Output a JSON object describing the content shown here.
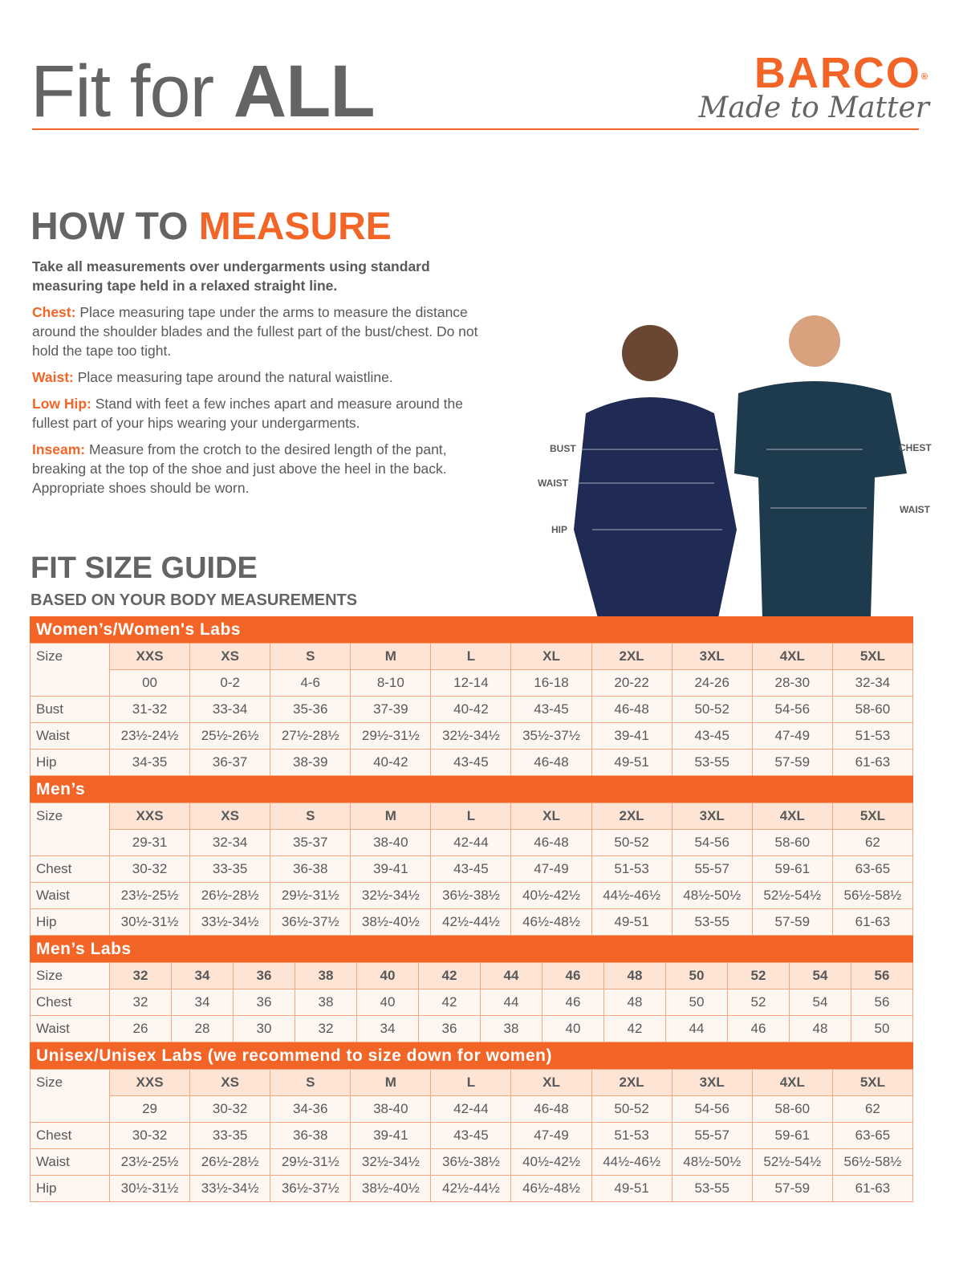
{
  "header": {
    "title_thin": "Fit for ",
    "title_bold": "ALL",
    "brand": "BARCO",
    "brand_mark": "®",
    "tagline": "Made to Matter"
  },
  "measure": {
    "title_a": "HOW TO ",
    "title_b": "MEASURE",
    "lead": "Take all measurements over undergarments using standard measuring tape held in a relaxed straight line.",
    "items": [
      {
        "term": "Chest:",
        "text": " Place measuring tape under the arms to measure the distance around the shoulder blades and the fullest part of the bust/chest. Do not hold the tape too tight."
      },
      {
        "term": "Waist:",
        "text": " Place measuring tape around the natural waistline."
      },
      {
        "term": "Low Hip:",
        "text": " Stand with feet a few inches apart and measure around the fullest part of your hips wearing your undergarments."
      },
      {
        "term": "Inseam:",
        "text": " Measure from the crotch to the desired length of the pant, breaking at the top of the shoe and just above the heel in the back. Appropriate shoes should be worn."
      }
    ]
  },
  "photo": {
    "labels": [
      "BUST",
      "WAIST",
      "HIP",
      "CHEST",
      "WAIST"
    ]
  },
  "guide": {
    "title": "FIT SIZE GUIDE",
    "subtitle": "BASED ON YOUR BODY MEASUREMENTS"
  },
  "tables": [
    {
      "title": "Women’s/Women's Labs",
      "sizes": [
        "XXS",
        "XS",
        "S",
        "M",
        "L",
        "XL",
        "2XL",
        "3XL",
        "4XL",
        "5XL"
      ],
      "rows": [
        {
          "label": "",
          "values": [
            "00",
            "0-2",
            "4-6",
            "8-10",
            "12-14",
            "16-18",
            "20-22",
            "24-26",
            "28-30",
            "32-34"
          ]
        },
        {
          "label": "Bust",
          "values": [
            "31-32",
            "33-34",
            "35-36",
            "37-39",
            "40-42",
            "43-45",
            "46-48",
            "50-52",
            "54-56",
            "58-60"
          ]
        },
        {
          "label": "Waist",
          "values": [
            "23½-24½",
            "25½-26½",
            "27½-28½",
            "29½-31½",
            "32½-34½",
            "35½-37½",
            "39-41",
            "43-45",
            "47-49",
            "51-53"
          ]
        },
        {
          "label": "Hip",
          "values": [
            "34-35",
            "36-37",
            "38-39",
            "40-42",
            "43-45",
            "46-48",
            "49-51",
            "53-55",
            "57-59",
            "61-63"
          ]
        }
      ]
    },
    {
      "title": "Men’s",
      "sizes": [
        "XXS",
        "XS",
        "S",
        "M",
        "L",
        "XL",
        "2XL",
        "3XL",
        "4XL",
        "5XL"
      ],
      "rows": [
        {
          "label": "",
          "values": [
            "29-31",
            "32-34",
            "35-37",
            "38-40",
            "42-44",
            "46-48",
            "50-52",
            "54-56",
            "58-60",
            "62"
          ]
        },
        {
          "label": "Chest",
          "values": [
            "30-32",
            "33-35",
            "36-38",
            "39-41",
            "43-45",
            "47-49",
            "51-53",
            "55-57",
            "59-61",
            "63-65"
          ]
        },
        {
          "label": "Waist",
          "values": [
            "23½-25½",
            "26½-28½",
            "29½-31½",
            "32½-34½",
            "36½-38½",
            "40½-42½",
            "44½-46½",
            "48½-50½",
            "52½-54½",
            "56½-58½"
          ]
        },
        {
          "label": "Hip",
          "values": [
            "30½-31½",
            "33½-34½",
            "36½-37½",
            "38½-40½",
            "42½-44½",
            "46½-48½",
            "49-51",
            "53-55",
            "57-59",
            "61-63"
          ]
        }
      ]
    },
    {
      "title": "Men’s Labs",
      "sizes": [
        "32",
        "34",
        "36",
        "38",
        "40",
        "42",
        "44",
        "46",
        "48",
        "50",
        "52",
        "54",
        "56"
      ],
      "rows": [
        {
          "label": "Chest",
          "values": [
            "32",
            "34",
            "36",
            "38",
            "40",
            "42",
            "44",
            "46",
            "48",
            "50",
            "52",
            "54",
            "56"
          ]
        },
        {
          "label": "Waist",
          "values": [
            "26",
            "28",
            "30",
            "32",
            "34",
            "36",
            "38",
            "40",
            "42",
            "44",
            "46",
            "48",
            "50"
          ]
        }
      ]
    },
    {
      "title": "Unisex/Unisex Labs (we recommend to size down for women)",
      "sizes": [
        "XXS",
        "XS",
        "S",
        "M",
        "L",
        "XL",
        "2XL",
        "3XL",
        "4XL",
        "5XL"
      ],
      "rows": [
        {
          "label": "",
          "values": [
            "29",
            "30-32",
            "34-36",
            "38-40",
            "42-44",
            "46-48",
            "50-52",
            "54-56",
            "58-60",
            "62"
          ]
        },
        {
          "label": "Chest",
          "values": [
            "30-32",
            "33-35",
            "36-38",
            "39-41",
            "43-45",
            "47-49",
            "51-53",
            "55-57",
            "59-61",
            "63-65"
          ]
        },
        {
          "label": "Waist",
          "values": [
            "23½-25½",
            "26½-28½",
            "29½-31½",
            "32½-34½",
            "36½-38½",
            "40½-42½",
            "44½-46½",
            "48½-50½",
            "52½-54½",
            "56½-58½"
          ]
        },
        {
          "label": "Hip",
          "values": [
            "30½-31½",
            "33½-34½",
            "36½-37½",
            "38½-40½",
            "42½-44½",
            "46½-48½",
            "49-51",
            "53-55",
            "57-59",
            "61-63"
          ]
        }
      ]
    }
  ],
  "size_label": "Size",
  "colors": {
    "accent": "#f26527",
    "text": "#58595b",
    "header_cell": "#fde4d5",
    "cell": "#fef6f1",
    "border": "#f5a67f",
    "scrub_navy": "#1f2a55",
    "scrub_teal": "#1e3a4d"
  }
}
